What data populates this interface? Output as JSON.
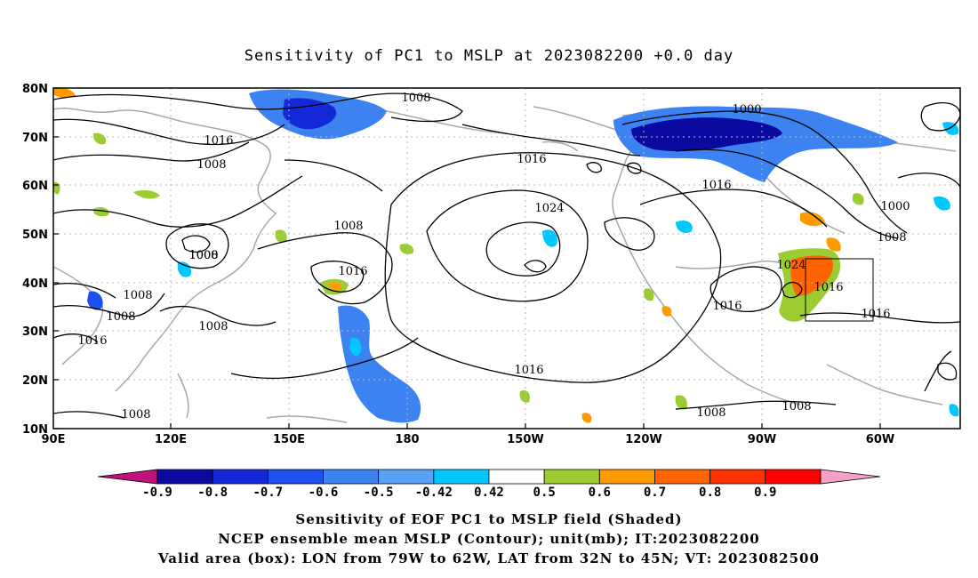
{
  "title": "Sensitivity of PC1 to MSLP at 2023082200 +0.0 day",
  "map": {
    "lat_labels": [
      "80N",
      "70N",
      "60N",
      "50N",
      "40N",
      "30N",
      "20N",
      "10N"
    ],
    "lon_labels": [
      "90E",
      "120E",
      "150E",
      "180",
      "150W",
      "120W",
      "90W",
      "60W"
    ],
    "contour_labels": [
      "1008",
      "1000",
      "1016",
      "1008",
      "1016",
      "1008",
      "1008",
      "1000",
      "1008",
      "1016",
      "1016",
      "1024",
      "1016",
      "1016",
      "1016",
      "1008",
      "1008",
      "1024",
      "1016",
      "1016",
      "1016",
      "1000",
      "1008",
      "1008",
      "1008",
      "1008"
    ],
    "valid_box": {
      "lon_from": "79W",
      "lon_to": "62W",
      "lat_from": "32N",
      "lat_to": "45N"
    }
  },
  "colorbar": {
    "labels": [
      "-0.9",
      "-0.8",
      "-0.7",
      "-0.6",
      "-0.5",
      "-0.42",
      "0.42",
      "0.5",
      "0.6",
      "0.7",
      "0.8",
      "0.9"
    ],
    "colors": [
      "#c0117a",
      "#0a0aa0",
      "#1428d8",
      "#1e50f0",
      "#3c82f0",
      "#5aa0f5",
      "#00c8ff",
      "#ffffff",
      "#9bcd32",
      "#ff9b00",
      "#ff6400",
      "#ff3200",
      "#ff0000",
      "#f5a0c8"
    ]
  },
  "caption": {
    "line1": "Sensitivity of EOF PC1 to MSLP field (Shaded)",
    "line2": "NCEP ensemble mean MSLP (Contour); unit(mb); IT:2023082200",
    "line3": "Valid area (box): LON from 79W to 62W, LAT from 32N to 45N; VT: 2023082500"
  }
}
